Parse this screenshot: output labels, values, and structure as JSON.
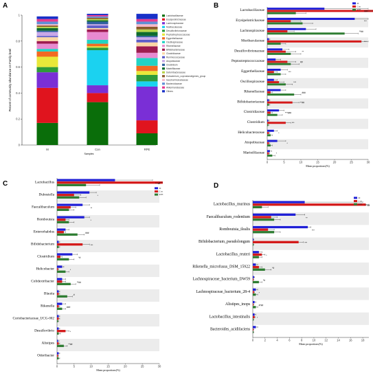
{
  "figure": {
    "letters": [
      "A",
      "B",
      "C",
      "D"
    ]
  },
  "colors": {
    "M": "#1f1fd6",
    "Con": "#d41a1a",
    "RPE": "#2e7d32",
    "alt_band": "#ececec"
  },
  "chart_data": [
    {
      "panel": "A",
      "type": "bar",
      "stacked": true,
      "categories": [
        "M",
        "Con",
        "RPE"
      ],
      "xlabel": "Samples",
      "ylabel": "Percent of community abundance on Family level",
      "ylim": [
        0,
        1
      ],
      "yticks": [
        0,
        0.2,
        0.4,
        0.6,
        0.8,
        1
      ],
      "legend_position": "right",
      "series": [
        {
          "name": "Lactobacillaceae",
          "color": "#0a6e0a",
          "values": [
            0.17,
            0.33,
            0.09
          ]
        },
        {
          "name": "Erysipelotrichaceae",
          "color": "#e0141e",
          "values": [
            0.27,
            0.07,
            0.1
          ]
        },
        {
          "name": "Lachnospiraceae",
          "color": "#7a2fd6",
          "values": [
            0.12,
            0.06,
            0.26
          ]
        },
        {
          "name": "Muribaculaceae",
          "color": "#1bd2f0",
          "values": [
            0.0,
            0.27,
            0.04
          ]
        },
        {
          "name": "Desulfovibrionaceae",
          "color": "#2e9a3b",
          "values": [
            0.04,
            0.02,
            0.05
          ]
        },
        {
          "name": "Peptostreptococcaceae",
          "color": "#e8e83a",
          "values": [
            0.08,
            0.01,
            0.03
          ]
        },
        {
          "name": "Eggerthellaceae",
          "color": "#f26a22",
          "values": [
            0.04,
            0.02,
            0.04
          ]
        },
        {
          "name": "Oscillospiraceae",
          "color": "#22d3c4",
          "values": [
            0.02,
            0.03,
            0.06
          ]
        },
        {
          "name": "Rikenellaceae",
          "color": "#e88ad0",
          "values": [
            0.04,
            0.06,
            0.04
          ]
        },
        {
          "name": "Bifidobacteriaceae",
          "color": "#9e1b4f",
          "values": [
            0.02,
            0.02,
            0.05
          ]
        },
        {
          "name": "Clostridiaceae",
          "color": "#fad6a5",
          "values": [
            0.03,
            0.01,
            0.03
          ]
        },
        {
          "name": "Ruminococcaceae",
          "color": "#5c5cc8",
          "values": [
            0.01,
            0.02,
            0.02
          ]
        },
        {
          "name": "Atopobiaceae",
          "color": "#c9a8e8",
          "values": [
            0.03,
            0.01,
            0.02
          ]
        },
        {
          "name": "Clostridium",
          "color": "#2f5fa0",
          "values": [
            0.01,
            0.02,
            0.01
          ]
        },
        {
          "name": "Marinifilaceae",
          "color": "#0e6b2e",
          "values": [
            0.02,
            0.01,
            0.03
          ]
        },
        {
          "name": "Deferribacteraceae",
          "color": "#b8d44a",
          "values": [
            0.01,
            0.01,
            0.02
          ]
        },
        {
          "name": "Eubacterium_coprostanoligenes_group",
          "color": "#8b5a2b",
          "values": [
            0.01,
            0.01,
            0.02
          ]
        },
        {
          "name": "Saccharimonadaceae",
          "color": "#f7b8c8",
          "values": [
            0.01,
            0.0,
            0.02
          ]
        },
        {
          "name": "Bacteroidaceae",
          "color": "#5f8fd6",
          "values": [
            0.02,
            0.01,
            0.02
          ]
        },
        {
          "name": "Akkermansiaceae",
          "color": "#e63a8f",
          "values": [
            0.02,
            0.01,
            0.02
          ]
        },
        {
          "name": "Others",
          "color": "#1830c8",
          "values": [
            0.02,
            0.01,
            0.04
          ]
        }
      ]
    },
    {
      "panel": "B",
      "type": "bar",
      "orientation": "horizontal",
      "xlabel": "Mean proportions(%)",
      "xlim": [
        0,
        30
      ],
      "xticks": [
        0,
        5,
        10,
        15,
        20,
        25,
        30
      ],
      "legend": [
        "M",
        "Con",
        "RPE"
      ],
      "legend_position": "top-right",
      "categories": [
        "Lactobacillaceae",
        "Erysipelotrichaceae",
        "Lachnospiraceae",
        "Muribaculaceae",
        "Desulfovibrionaceae",
        "Peptostreptococcaceae",
        "Eggerthellaceae",
        "Oscillospiraceae",
        "Rikenellaceae",
        "Bifidobacteriaceae",
        "Clostridiaceae",
        "Clostridium",
        "Helicobacteraceae",
        "Atopobiaceae",
        "Marinifilaceae"
      ],
      "series": [
        {
          "name": "M",
          "values": [
            17,
            26,
            11.5,
            0.5,
            4.5,
            2.5,
            4,
            2,
            4,
            0.5,
            3.5,
            0.3,
            2,
            3,
            0.8
          ],
          "errors": [
            13,
            6,
            3,
            0.3,
            2,
            1.5,
            2,
            1,
            1.5,
            0.3,
            1.5,
            0.3,
            1,
            2.5,
            0.5
          ]
        },
        {
          "name": "Con",
          "values": [
            32,
            7,
            6,
            28,
            5.5,
            6,
            2,
            3.5,
            1,
            7.5,
            1,
            5.5,
            0.5,
            0.5,
            0.5
          ],
          "errors": [
            4,
            3,
            2,
            6,
            3,
            2.5,
            1,
            1.5,
            0.5,
            2,
            0.5,
            1.5,
            0.3,
            0.3,
            0.2
          ]
        },
        {
          "name": "RPE",
          "values": [
            8.5,
            10.5,
            23,
            4,
            7,
            7,
            4,
            5.5,
            8,
            0.5,
            3,
            0.3,
            1,
            1,
            1.5
          ],
          "errors": [
            3,
            3,
            4,
            1.5,
            3,
            2.5,
            1.5,
            2,
            2,
            0.3,
            1.5,
            0.2,
            0.5,
            0.5,
            0.8
          ]
        }
      ],
      "annotations": [
        "###",
        "***",
        "**##",
        "***",
        "**",
        "##",
        "***",
        "***",
        "###",
        "**##",
        "***###",
        "***",
        "*",
        "*",
        "*"
      ]
    },
    {
      "panel": "C",
      "type": "bar",
      "orientation": "horizontal",
      "xlabel": "Mean proportions(%)",
      "xlim": [
        0,
        30
      ],
      "xticks": [
        0,
        5,
        10,
        15,
        20,
        25,
        30
      ],
      "legend": [
        "M",
        "Con",
        "RPE"
      ],
      "legend_position": "top-right",
      "categories": [
        "Lactobacillus",
        "Dubosiella",
        "Faecalibaculum",
        "Romboutsia",
        "Enterorhabdus",
        "Bifidobacterium",
        "Clostridium",
        "Helicobacter",
        "Colidextribacter",
        "Blautia",
        "Rikenella",
        "Coriobacteriaceae_UCG-002",
        "Desulfovibrio",
        "Alistipes",
        "Odoribacter"
      ],
      "series": [
        {
          "name": "M",
          "values": [
            17,
            9.5,
            7.5,
            8,
            2.5,
            0.5,
            4.5,
            1.5,
            1.5,
            0.5,
            1.5,
            0.5,
            0.5,
            0.3,
            0.5
          ],
          "errors": [
            11,
            2,
            2,
            1.5,
            1,
            0.3,
            1.5,
            0.5,
            1,
            0.3,
            1,
            0.3,
            0.3,
            0.3,
            0.3
          ]
        },
        {
          "name": "Con",
          "values": [
            31,
            5,
            4,
            2.5,
            2,
            7.5,
            1,
            0.3,
            1.5,
            0.5,
            0.5,
            0.5,
            2.5,
            0.5,
            0.3
          ],
          "errors": [
            3,
            2,
            1.5,
            1,
            0.5,
            2,
            0.5,
            0.2,
            1,
            0.3,
            0.3,
            0.3,
            1,
            0.3,
            0.2
          ]
        },
        {
          "name": "RPE",
          "values": [
            8.5,
            6.5,
            3.5,
            3.5,
            6,
            0.5,
            3.5,
            2.5,
            4,
            3,
            1.5,
            0.3,
            0.5,
            2,
            0.5
          ],
          "errors": [
            4,
            2,
            1.5,
            1.5,
            2,
            0.3,
            1.5,
            1,
            1.5,
            1.5,
            1,
            0.2,
            0.5,
            1,
            0.3
          ]
        }
      ],
      "annotations": [
        "***##",
        "*",
        "**",
        "*",
        "###",
        "***",
        "*#",
        "*",
        "**##",
        "#",
        "###",
        "",
        "*",
        "**##",
        ""
      ]
    },
    {
      "panel": "D",
      "type": "bar",
      "orientation": "horizontal",
      "xlabel": "Mean proportions(%)",
      "xlim": [
        0,
        19
      ],
      "xticks": [
        0,
        2,
        4,
        6,
        8,
        10,
        12,
        14,
        16,
        18
      ],
      "legend": [
        "M",
        "Con",
        "RPE"
      ],
      "legend_position": "top-right",
      "categories": [
        "Lactobacillus_murinus",
        "Faecalibaculum_rodentium",
        "Romboutsia_ilealis",
        "Bifidobacterium_pseudolongum",
        "Lactobacillus_reuteri",
        "Rikenella_microfusus_DSM_15922",
        "Lachnospiraceae_bacterium_DW59",
        "Lachnospiraceae_bacterium_28-4",
        "Alistipes_inops",
        "Lactobacillus_intestinalis",
        "Bacteroides_acidifaciens"
      ],
      "series": [
        {
          "name": "M",
          "values": [
            8.5,
            7,
            9,
            0.1,
            1,
            0.5,
            0.2,
            0.5,
            0.3,
            0.3,
            0.5
          ],
          "errors": [
            9.5,
            1.5,
            0.5,
            0.1,
            0.5,
            0.3,
            0.1,
            0.3,
            0.2,
            0.2,
            0.3
          ]
        },
        {
          "name": "Con",
          "values": [
            18.5,
            3,
            2.5,
            7.5,
            1.5,
            1,
            0.1,
            0.2,
            0.1,
            0.3,
            0.1
          ],
          "errors": [
            0.8,
            1,
            1,
            0.8,
            0.5,
            0.5,
            0.1,
            0.1,
            0.1,
            0.1,
            0.1
          ]
        },
        {
          "name": "RPE",
          "values": [
            1.5,
            3.5,
            3.5,
            0.1,
            1,
            2,
            1,
            0.5,
            0.5,
            0.1,
            0.1
          ],
          "errors": [
            1,
            1,
            1,
            0.1,
            0.5,
            1,
            0.5,
            0.3,
            0.3,
            0.1,
            0.1
          ]
        }
      ],
      "annotations": [
        "***##",
        "**",
        "***",
        "***",
        "*",
        "*#",
        "*#",
        "*",
        "#*##",
        "*",
        ""
      ]
    }
  ]
}
